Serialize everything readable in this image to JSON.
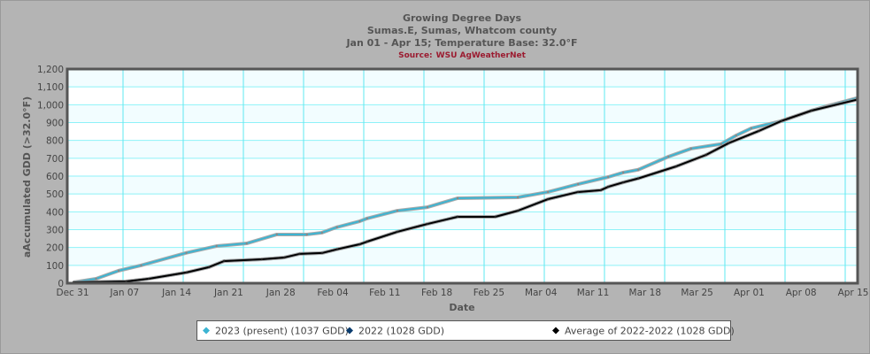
{
  "chart_data": {
    "type": "line",
    "title": "Growing Degree Days",
    "subtitle": "Sumas.E, Sumas, Whatcom county",
    "subtitle2": "Jan 01 - Apr 15; Temperature Base: 32.0°F",
    "source_label": "Source:",
    "source_name": "WSU AgWeatherNet",
    "xlabel": "Date",
    "ylabel": "aAccumulated GDD (>32.0°F)",
    "ylim": [
      0,
      1200
    ],
    "yticks": [
      "0",
      "100",
      "200",
      "300",
      "400",
      "500",
      "600",
      "700",
      "800",
      "900",
      "1,000",
      "1,100",
      "1,200"
    ],
    "xticks": [
      "Dec 31",
      "Jan 07",
      "Jan 14",
      "Jan 21",
      "Jan 28",
      "Feb 04",
      "Feb 11",
      "Feb 18",
      "Feb 25",
      "Mar 04",
      "Mar 11",
      "Mar 18",
      "Mar 25",
      "Apr 01",
      "Apr 08",
      "Apr 15"
    ],
    "grid": true,
    "legend_position": "bottom",
    "series": [
      {
        "name": "2023 (present) (1037 GDD)",
        "color": "#3cb4d2",
        "points": [
          [
            "Jan 01",
            5
          ],
          [
            "Jan 04",
            25
          ],
          [
            "Jan 07",
            70
          ],
          [
            "Jan 10",
            100
          ],
          [
            "Jan 16",
            170
          ],
          [
            "Jan 20",
            208
          ],
          [
            "Jan 24",
            223
          ],
          [
            "Jan 28",
            273
          ],
          [
            "Feb 01",
            273
          ],
          [
            "Feb 03",
            283
          ],
          [
            "Feb 05",
            314
          ],
          [
            "Feb 08",
            347
          ],
          [
            "Feb 09",
            363
          ],
          [
            "Feb 13",
            406
          ],
          [
            "Feb 17",
            426
          ],
          [
            "Feb 21",
            476
          ],
          [
            "Mar 01",
            481
          ],
          [
            "Mar 05",
            511
          ],
          [
            "Mar 09",
            555
          ],
          [
            "Mar 13",
            595
          ],
          [
            "Mar 15",
            620
          ],
          [
            "Mar 17",
            636
          ],
          [
            "Mar 21",
            709
          ],
          [
            "Mar 24",
            754
          ],
          [
            "Mar 28",
            780
          ],
          [
            "Mar 30",
            828
          ],
          [
            "Apr 01",
            868
          ],
          [
            "Apr 05",
            909
          ],
          [
            "Apr 09",
            967
          ],
          [
            "Apr 11",
            992
          ],
          [
            "Apr 15",
            1037
          ]
        ]
      },
      {
        "name": "2022 (1028 GDD)",
        "color": "#0a3c6e",
        "points": [
          [
            "Jan 01",
            5
          ],
          [
            "Jan 08",
            10
          ],
          [
            "Jan 11",
            25
          ],
          [
            "Jan 16",
            60
          ],
          [
            "Jan 19",
            90
          ],
          [
            "Jan 21",
            124
          ],
          [
            "Jan 26",
            134
          ],
          [
            "Jan 29",
            144
          ],
          [
            "Jan 31",
            164
          ],
          [
            "Feb 03",
            169
          ],
          [
            "Feb 05",
            190
          ],
          [
            "Feb 08",
            218
          ],
          [
            "Feb 09",
            233
          ],
          [
            "Feb 13",
            288
          ],
          [
            "Feb 17",
            332
          ],
          [
            "Feb 21",
            372
          ],
          [
            "Feb 26",
            372
          ],
          [
            "Mar 01",
            406
          ],
          [
            "Mar 05",
            471
          ],
          [
            "Mar 09",
            511
          ],
          [
            "Mar 12",
            521
          ],
          [
            "Mar 13",
            540
          ],
          [
            "Mar 15",
            565
          ],
          [
            "Mar 17",
            587
          ],
          [
            "Mar 22",
            654
          ],
          [
            "Mar 26",
            719
          ],
          [
            "Mar 29",
            785
          ],
          [
            "Apr 02",
            853
          ],
          [
            "Apr 05",
            909
          ],
          [
            "Apr 09",
            967
          ],
          [
            "Apr 15",
            1028
          ]
        ]
      },
      {
        "name": "Average of 2022-2022 (1028 GDD)",
        "color": "#000000",
        "points": [
          [
            "Jan 01",
            5
          ],
          [
            "Jan 08",
            10
          ],
          [
            "Jan 11",
            25
          ],
          [
            "Jan 16",
            60
          ],
          [
            "Jan 19",
            90
          ],
          [
            "Jan 21",
            124
          ],
          [
            "Jan 26",
            134
          ],
          [
            "Jan 29",
            144
          ],
          [
            "Jan 31",
            164
          ],
          [
            "Feb 03",
            169
          ],
          [
            "Feb 05",
            190
          ],
          [
            "Feb 08",
            218
          ],
          [
            "Feb 09",
            233
          ],
          [
            "Feb 13",
            288
          ],
          [
            "Feb 17",
            332
          ],
          [
            "Feb 21",
            372
          ],
          [
            "Feb 26",
            372
          ],
          [
            "Mar 01",
            406
          ],
          [
            "Mar 05",
            471
          ],
          [
            "Mar 09",
            511
          ],
          [
            "Mar 12",
            521
          ],
          [
            "Mar 13",
            540
          ],
          [
            "Mar 15",
            565
          ],
          [
            "Mar 17",
            587
          ],
          [
            "Mar 22",
            654
          ],
          [
            "Mar 26",
            719
          ],
          [
            "Mar 29",
            785
          ],
          [
            "Apr 02",
            853
          ],
          [
            "Apr 05",
            909
          ],
          [
            "Apr 09",
            967
          ],
          [
            "Apr 15",
            1028
          ]
        ]
      }
    ]
  }
}
